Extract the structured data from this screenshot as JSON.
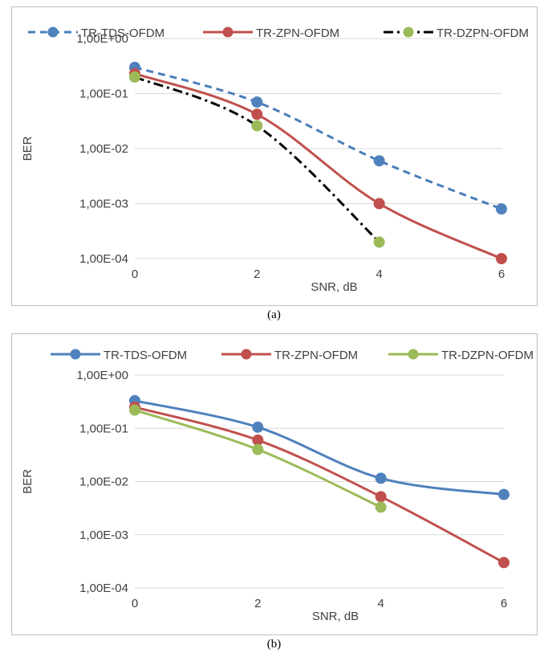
{
  "chart_data": [
    {
      "type": "line",
      "caption": "(a)",
      "xlabel": "SNR, dB",
      "ylabel": "BER",
      "yscale": "log",
      "ylim": [
        0.0001,
        1
      ],
      "yticks": [
        "1,00E+00",
        "1,00E-01",
        "1,00E-02",
        "1,00E-03",
        "1,00E-04"
      ],
      "xticks": [
        "0",
        "2",
        "4",
        "6"
      ],
      "xlim": [
        0,
        6
      ],
      "legend_position": "top",
      "grid": "horizontal",
      "series": [
        {
          "name": "TR-TDS-OFDM",
          "color": "#4a7ebb",
          "marker_color": "#4f81bd",
          "dash": "dashed",
          "x": [
            0,
            2,
            4,
            6
          ],
          "y": [
            0.3,
            0.07,
            0.006,
            0.0008
          ]
        },
        {
          "name": "TR-ZPN-OFDM",
          "color": "#c0504d",
          "marker_color": "#c0504d",
          "dash": "solid",
          "x": [
            0,
            2,
            4,
            6
          ],
          "y": [
            0.23,
            0.042,
            0.001,
            0.0001
          ]
        },
        {
          "name": "TR-DZPN-OFDM",
          "color": "#000000",
          "marker_color": "#9bbb59",
          "dash": "dashdot",
          "x": [
            0,
            2,
            4
          ],
          "y": [
            0.2,
            0.026,
            0.0002
          ]
        }
      ]
    },
    {
      "type": "line",
      "caption": "(b)",
      "xlabel": "SNR, dB",
      "ylabel": "BER",
      "yscale": "log",
      "ylim": [
        0.0001,
        1
      ],
      "yticks": [
        "1,00E+00",
        "1,00E-01",
        "1,00E-02",
        "1,00E-03",
        "1,00E-04"
      ],
      "xticks": [
        "0",
        "2",
        "4",
        "6"
      ],
      "xlim": [
        0,
        6
      ],
      "legend_position": "top",
      "grid": "horizontal",
      "series": [
        {
          "name": "TR-TDS-OFDM",
          "color": "#4f81bd",
          "marker_color": "#4f81bd",
          "dash": "solid",
          "x": [
            0,
            2,
            4,
            6
          ],
          "y": [
            0.33,
            0.105,
            0.0115,
            0.0057
          ]
        },
        {
          "name": "TR-ZPN-OFDM",
          "color": "#c0504d",
          "marker_color": "#c0504d",
          "dash": "solid",
          "x": [
            0,
            2,
            4,
            6
          ],
          "y": [
            0.25,
            0.06,
            0.0052,
            0.0003
          ]
        },
        {
          "name": "TR-DZPN-OFDM",
          "color": "#9bbb59",
          "marker_color": "#9bbb59",
          "dash": "solid",
          "x": [
            0,
            2,
            4
          ],
          "y": [
            0.22,
            0.04,
            0.0033
          ]
        }
      ]
    }
  ]
}
